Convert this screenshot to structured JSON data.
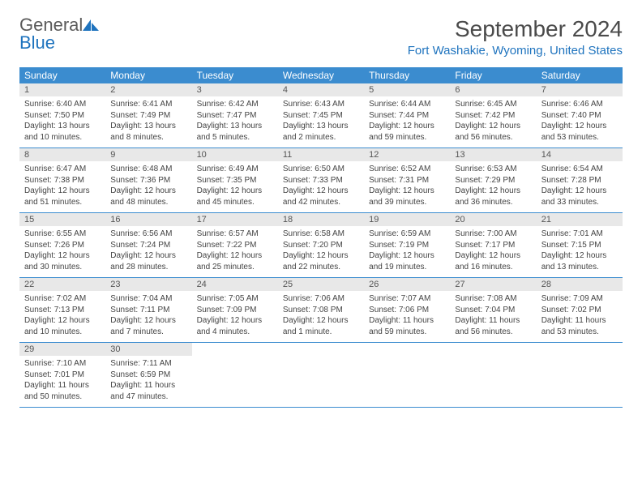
{
  "brand": {
    "general": "General",
    "blue": "Blue"
  },
  "title": {
    "month": "September 2024",
    "location": "Fort Washakie, Wyoming, United States"
  },
  "colors": {
    "header_bg": "#3b8ccf",
    "header_text": "#ffffff",
    "daynum_bg": "#e8e8e8",
    "accent": "#1e73be",
    "text": "#444444",
    "week_border": "#3b8ccf"
  },
  "day_labels": [
    "Sunday",
    "Monday",
    "Tuesday",
    "Wednesday",
    "Thursday",
    "Friday",
    "Saturday"
  ],
  "weeks": [
    [
      {
        "n": "1",
        "sr": "Sunrise: 6:40 AM",
        "ss": "Sunset: 7:50 PM",
        "dl": "Daylight: 13 hours and 10 minutes."
      },
      {
        "n": "2",
        "sr": "Sunrise: 6:41 AM",
        "ss": "Sunset: 7:49 PM",
        "dl": "Daylight: 13 hours and 8 minutes."
      },
      {
        "n": "3",
        "sr": "Sunrise: 6:42 AM",
        "ss": "Sunset: 7:47 PM",
        "dl": "Daylight: 13 hours and 5 minutes."
      },
      {
        "n": "4",
        "sr": "Sunrise: 6:43 AM",
        "ss": "Sunset: 7:45 PM",
        "dl": "Daylight: 13 hours and 2 minutes."
      },
      {
        "n": "5",
        "sr": "Sunrise: 6:44 AM",
        "ss": "Sunset: 7:44 PM",
        "dl": "Daylight: 12 hours and 59 minutes."
      },
      {
        "n": "6",
        "sr": "Sunrise: 6:45 AM",
        "ss": "Sunset: 7:42 PM",
        "dl": "Daylight: 12 hours and 56 minutes."
      },
      {
        "n": "7",
        "sr": "Sunrise: 6:46 AM",
        "ss": "Sunset: 7:40 PM",
        "dl": "Daylight: 12 hours and 53 minutes."
      }
    ],
    [
      {
        "n": "8",
        "sr": "Sunrise: 6:47 AM",
        "ss": "Sunset: 7:38 PM",
        "dl": "Daylight: 12 hours and 51 minutes."
      },
      {
        "n": "9",
        "sr": "Sunrise: 6:48 AM",
        "ss": "Sunset: 7:36 PM",
        "dl": "Daylight: 12 hours and 48 minutes."
      },
      {
        "n": "10",
        "sr": "Sunrise: 6:49 AM",
        "ss": "Sunset: 7:35 PM",
        "dl": "Daylight: 12 hours and 45 minutes."
      },
      {
        "n": "11",
        "sr": "Sunrise: 6:50 AM",
        "ss": "Sunset: 7:33 PM",
        "dl": "Daylight: 12 hours and 42 minutes."
      },
      {
        "n": "12",
        "sr": "Sunrise: 6:52 AM",
        "ss": "Sunset: 7:31 PM",
        "dl": "Daylight: 12 hours and 39 minutes."
      },
      {
        "n": "13",
        "sr": "Sunrise: 6:53 AM",
        "ss": "Sunset: 7:29 PM",
        "dl": "Daylight: 12 hours and 36 minutes."
      },
      {
        "n": "14",
        "sr": "Sunrise: 6:54 AM",
        "ss": "Sunset: 7:28 PM",
        "dl": "Daylight: 12 hours and 33 minutes."
      }
    ],
    [
      {
        "n": "15",
        "sr": "Sunrise: 6:55 AM",
        "ss": "Sunset: 7:26 PM",
        "dl": "Daylight: 12 hours and 30 minutes."
      },
      {
        "n": "16",
        "sr": "Sunrise: 6:56 AM",
        "ss": "Sunset: 7:24 PM",
        "dl": "Daylight: 12 hours and 28 minutes."
      },
      {
        "n": "17",
        "sr": "Sunrise: 6:57 AM",
        "ss": "Sunset: 7:22 PM",
        "dl": "Daylight: 12 hours and 25 minutes."
      },
      {
        "n": "18",
        "sr": "Sunrise: 6:58 AM",
        "ss": "Sunset: 7:20 PM",
        "dl": "Daylight: 12 hours and 22 minutes."
      },
      {
        "n": "19",
        "sr": "Sunrise: 6:59 AM",
        "ss": "Sunset: 7:19 PM",
        "dl": "Daylight: 12 hours and 19 minutes."
      },
      {
        "n": "20",
        "sr": "Sunrise: 7:00 AM",
        "ss": "Sunset: 7:17 PM",
        "dl": "Daylight: 12 hours and 16 minutes."
      },
      {
        "n": "21",
        "sr": "Sunrise: 7:01 AM",
        "ss": "Sunset: 7:15 PM",
        "dl": "Daylight: 12 hours and 13 minutes."
      }
    ],
    [
      {
        "n": "22",
        "sr": "Sunrise: 7:02 AM",
        "ss": "Sunset: 7:13 PM",
        "dl": "Daylight: 12 hours and 10 minutes."
      },
      {
        "n": "23",
        "sr": "Sunrise: 7:04 AM",
        "ss": "Sunset: 7:11 PM",
        "dl": "Daylight: 12 hours and 7 minutes."
      },
      {
        "n": "24",
        "sr": "Sunrise: 7:05 AM",
        "ss": "Sunset: 7:09 PM",
        "dl": "Daylight: 12 hours and 4 minutes."
      },
      {
        "n": "25",
        "sr": "Sunrise: 7:06 AM",
        "ss": "Sunset: 7:08 PM",
        "dl": "Daylight: 12 hours and 1 minute."
      },
      {
        "n": "26",
        "sr": "Sunrise: 7:07 AM",
        "ss": "Sunset: 7:06 PM",
        "dl": "Daylight: 11 hours and 59 minutes."
      },
      {
        "n": "27",
        "sr": "Sunrise: 7:08 AM",
        "ss": "Sunset: 7:04 PM",
        "dl": "Daylight: 11 hours and 56 minutes."
      },
      {
        "n": "28",
        "sr": "Sunrise: 7:09 AM",
        "ss": "Sunset: 7:02 PM",
        "dl": "Daylight: 11 hours and 53 minutes."
      }
    ],
    [
      {
        "n": "29",
        "sr": "Sunrise: 7:10 AM",
        "ss": "Sunset: 7:01 PM",
        "dl": "Daylight: 11 hours and 50 minutes."
      },
      {
        "n": "30",
        "sr": "Sunrise: 7:11 AM",
        "ss": "Sunset: 6:59 PM",
        "dl": "Daylight: 11 hours and 47 minutes."
      },
      null,
      null,
      null,
      null,
      null
    ]
  ]
}
